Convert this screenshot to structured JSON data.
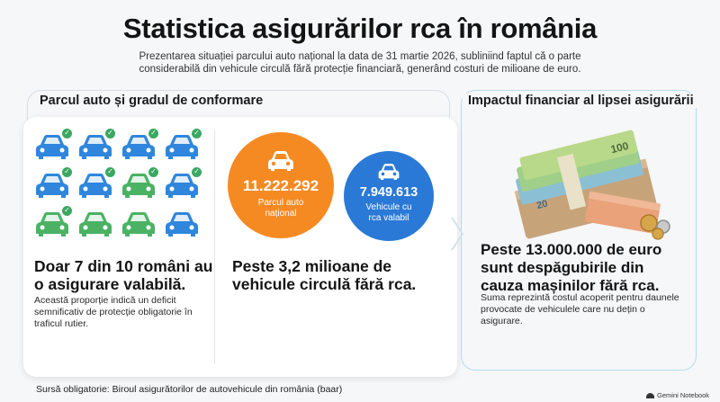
{
  "title": "Statistica asigurărilor rca în românia",
  "subtitle": "Prezentarea situației parcului auto național la data de 31 martie 2026, subliniind faptul că o parte considerabilă din vehicule circulă fără protecție financiară, generând costuri de milioane de euro.",
  "left_section": {
    "heading": "Parcul auto și gradul de conformare",
    "cars": [
      {
        "color": "blue",
        "insured": true
      },
      {
        "color": "blue",
        "insured": true
      },
      {
        "color": "blue",
        "insured": true
      },
      {
        "color": "blue",
        "insured": true
      },
      {
        "color": "blue",
        "insured": true
      },
      {
        "color": "blue",
        "insured": true
      },
      {
        "color": "green",
        "insured": true
      },
      {
        "color": "blue",
        "insured": true
      },
      {
        "color": "green",
        "insured": true
      },
      {
        "color": "green",
        "insured": false
      },
      {
        "color": "green",
        "insured": false
      },
      {
        "color": "blue",
        "insured": false
      }
    ],
    "headline": "Doar 7 din 10 români au o asigurare valabilă.",
    "body": "Această proporție indică un deficit semnificativ de protecție obligatorie în traficul rutier.",
    "stat_total": {
      "value": "11.222.292",
      "label": "Parcul auto național",
      "color": "#f58a23"
    },
    "stat_insured": {
      "value": "7.949.613",
      "label": "Vehicule cu rca valabil",
      "color": "#2b79d6"
    },
    "uninsured_headline": "Peste 3,2 milioane de vehicule circulă fără rca."
  },
  "right_section": {
    "heading": "Impactul financiar al lipsei asigurării",
    "headline": "Peste 13.000.000 de euro sunt despăgubirile din cauza mașinilor fără rca.",
    "body": "Suma reprezintă costul acoperit pentru daunele provocate de vehiculele care nu dețin o asigurare."
  },
  "source": "Sursă obligatorie: Biroul asigurătorilor de autovehicule din românia (baar)",
  "brand": "Gemini Notebook",
  "colors": {
    "car_blue": "#2f86dc",
    "car_green": "#4bb264",
    "check_green": "#3aa860",
    "orange": "#f58a23",
    "blue": "#2b79d6"
  },
  "icons": [
    "car-icon",
    "checkmark-icon",
    "money-stack-icon",
    "chevron-right-icon",
    "gemini-logo-icon"
  ]
}
